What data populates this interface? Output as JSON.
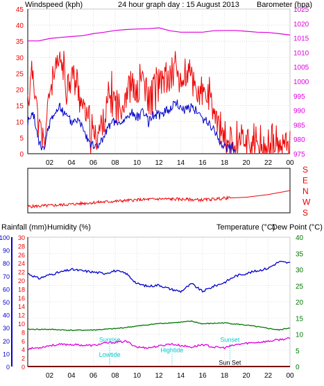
{
  "colors": {
    "red": "#ee0000",
    "blue": "#0000cc",
    "magenta": "#dd00dd",
    "green": "#007700",
    "cyan": "#00c8c8",
    "grid": "#c8c8c8",
    "axis": "#000000"
  },
  "chart_data": [
    {
      "type": "line",
      "title": "24 hour graph day : 15 August 2013",
      "left_axis_label": "Windspeed (kph)",
      "right_axis_label": "Barometer (hpa)",
      "x_ticks": [
        "02",
        "04",
        "06",
        "08",
        "10",
        "12",
        "14",
        "16",
        "18",
        "20",
        "22",
        "00"
      ],
      "left_ylim": [
        0,
        45
      ],
      "left_ticks": [
        0,
        5,
        10,
        15,
        20,
        25,
        30,
        35,
        40,
        45
      ],
      "right_ylim": [
        975,
        1025
      ],
      "right_ticks": [
        975,
        980,
        985,
        990,
        995,
        1000,
        1005,
        1010,
        1015,
        1020,
        1025
      ],
      "series": [
        {
          "axis": "left",
          "color": "red",
          "x": [
            0,
            0.5,
            1,
            1.5,
            2,
            2.5,
            3,
            3.5,
            4,
            4.5,
            5,
            5.5,
            6,
            6.5,
            7,
            7.5,
            8,
            8.5,
            9,
            9.5,
            10,
            10.5,
            11,
            11.5,
            12,
            12.5,
            13,
            13.5,
            14,
            14.5,
            15,
            15.5,
            16,
            16.5,
            17,
            17.5,
            18,
            18.5,
            19,
            19.5,
            20,
            20.5,
            21,
            21.5,
            22,
            22.5,
            23,
            23.5,
            24
          ],
          "values": [
            16,
            27,
            8,
            3,
            20,
            24,
            30,
            21,
            25,
            22,
            15,
            10,
            5,
            7,
            10,
            18,
            17,
            14,
            20,
            22,
            17,
            25,
            16,
            20,
            22,
            24,
            23,
            28,
            22,
            24,
            24,
            20,
            18,
            18,
            13,
            8,
            4,
            4,
            3,
            6,
            4,
            3,
            2,
            2,
            3,
            2,
            2,
            3,
            4
          ]
        },
        {
          "axis": "left",
          "color": "blue",
          "x": [
            0,
            0.5,
            1,
            1.5,
            2,
            2.5,
            3,
            3.5,
            4,
            4.5,
            5,
            5.5,
            6,
            6.5,
            7,
            7.5,
            8,
            8.5,
            9,
            9.5,
            10,
            10.5,
            11,
            11.5,
            12,
            12.5,
            13,
            13.5,
            14,
            14.5,
            15,
            15.5,
            16,
            16.5,
            17,
            17.5,
            18,
            18.5,
            19
          ],
          "values": [
            10,
            12,
            4,
            1,
            10,
            13,
            14,
            12,
            10,
            11,
            9,
            5,
            2,
            3,
            5,
            9,
            10,
            9,
            11,
            13,
            11,
            14,
            10,
            12,
            12,
            13,
            14,
            16,
            14,
            14,
            15,
            13,
            11,
            10,
            8,
            4,
            2,
            2,
            1
          ]
        },
        {
          "axis": "right",
          "color": "magenta",
          "x": [
            0,
            1,
            2,
            3,
            4,
            5,
            6,
            7,
            8,
            9,
            10,
            11,
            12,
            13,
            14,
            15,
            16,
            17,
            18,
            19,
            20,
            21,
            22,
            23,
            24
          ],
          "values": [
            1014,
            1014,
            1014.8,
            1015.2,
            1015.5,
            1015.8,
            1016.5,
            1017,
            1017.6,
            1017.9,
            1018.1,
            1018.2,
            1018.5,
            1017.5,
            1017,
            1017,
            1017,
            1017.5,
            1017.6,
            1017.6,
            1017.3,
            1017,
            1016.9,
            1016.5,
            1016
          ]
        }
      ]
    },
    {
      "type": "line",
      "y_labels": [
        "S",
        "E",
        "N",
        "W",
        "S"
      ],
      "series": [
        {
          "color": "red",
          "x": [
            0,
            2,
            4,
            6,
            8,
            10,
            12,
            14,
            16,
            18,
            20,
            22,
            24
          ],
          "values": [
            2,
            5,
            9,
            14,
            18,
            22,
            25,
            24,
            22,
            27,
            30,
            38,
            50
          ]
        }
      ]
    },
    {
      "type": "line",
      "rainfall_label": "Rainfall (mm)",
      "humidity_label": "Humidity (%)",
      "temperature_label": "Temperature (°C)",
      "dewpoint_label": "Dew Point (°C)",
      "x_ticks": [
        "02",
        "04",
        "06",
        "08",
        "10",
        "12",
        "14",
        "16",
        "18",
        "20",
        "22",
        "00"
      ],
      "humidity_ticks": [
        0,
        10,
        20,
        30,
        40,
        50,
        60,
        70,
        80,
        90,
        100
      ],
      "rainfall_ticks": [
        0,
        2,
        4,
        6,
        8,
        10,
        12,
        14,
        16,
        18,
        20,
        22,
        24,
        26,
        28,
        30
      ],
      "temperature_ticks": [
        0,
        5,
        10,
        15,
        20,
        25,
        30,
        35,
        40
      ],
      "annotations": [
        {
          "text": "Sunrise",
          "x": 7.5
        },
        {
          "text": "Lowtide",
          "x": 7.5
        },
        {
          "text": "Hightide",
          "x": 13.2
        },
        {
          "text": "Sunset",
          "x": 18.5
        },
        {
          "text": "Sun Set",
          "x": 18.5
        }
      ],
      "series": [
        {
          "name_axis": "humidity",
          "color": "blue",
          "x": [
            0,
            1,
            2,
            3,
            4,
            5,
            6,
            7,
            8,
            9,
            10,
            11,
            12,
            13,
            14,
            15,
            16,
            17,
            18,
            19,
            20,
            21,
            22,
            23,
            24
          ],
          "values": [
            72,
            68,
            71,
            73,
            75,
            74,
            73,
            72,
            74,
            72,
            64,
            62,
            63,
            60,
            58,
            64,
            58,
            62,
            65,
            70,
            72,
            74,
            76,
            81,
            80
          ]
        },
        {
          "name_axis": "temperature",
          "color": "green",
          "x": [
            0,
            2,
            4,
            6,
            8,
            10,
            12,
            14,
            15,
            16,
            18,
            20,
            22,
            23,
            24
          ],
          "values": [
            11.5,
            11.5,
            11.2,
            11.3,
            11.7,
            12.5,
            13.3,
            13.7,
            14,
            13.2,
            13.5,
            12.8,
            11.8,
            11.3,
            12
          ]
        },
        {
          "name_axis": "temperature",
          "color": "magenta",
          "x": [
            0,
            1,
            2,
            3,
            4,
            5,
            6,
            7,
            8,
            9,
            10,
            11,
            12,
            13,
            14,
            15,
            16,
            17,
            18,
            19,
            20,
            21,
            22,
            23,
            24
          ],
          "values": [
            5.5,
            5.8,
            6.5,
            6.8,
            6.8,
            6.6,
            6.5,
            7.2,
            7.5,
            7.8,
            6,
            5.8,
            6.3,
            7,
            6.5,
            6,
            6.8,
            6,
            5.8,
            6.7,
            7.2,
            7.5,
            7.8,
            8.3,
            8.7
          ]
        },
        {
          "name_axis": "rainfall",
          "color": "red",
          "x": [
            0,
            24
          ],
          "values": [
            0,
            0
          ]
        }
      ]
    }
  ]
}
